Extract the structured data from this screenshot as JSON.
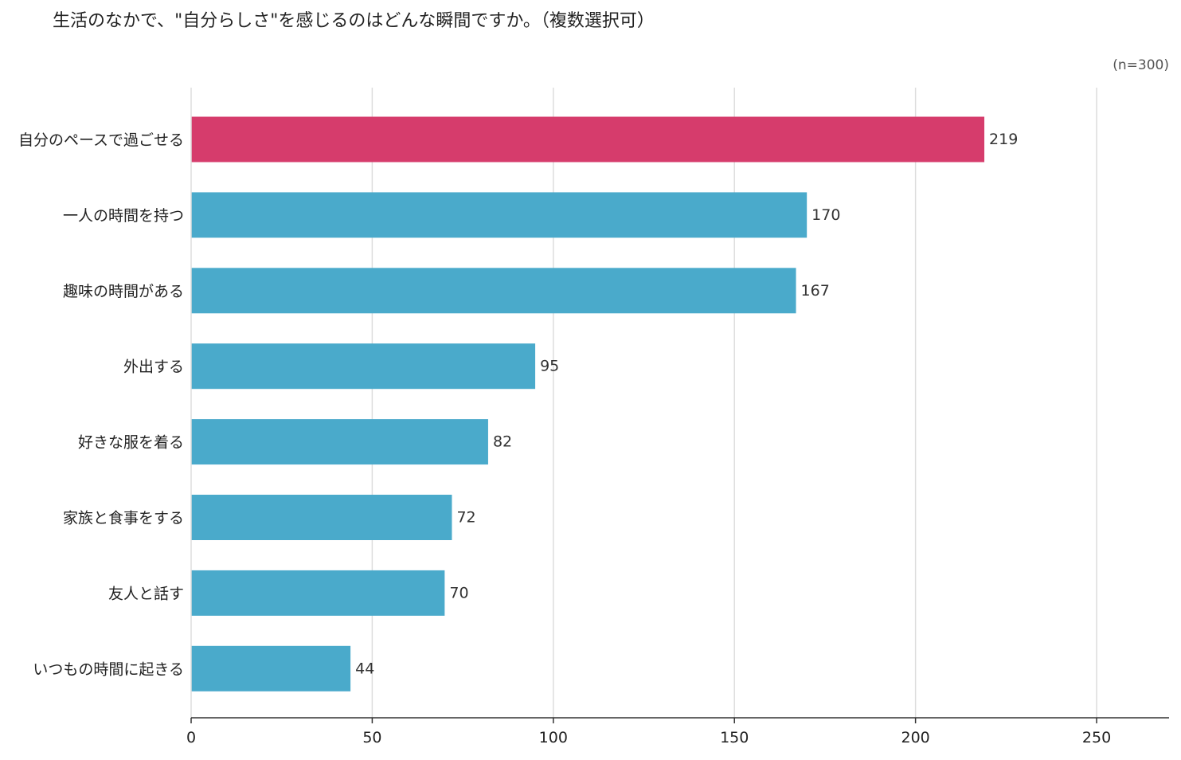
{
  "chart_data": {
    "type": "bar",
    "orientation": "horizontal",
    "title": "生活のなかで、\"自分らしさ\"を感じるのはどんな瞬間ですか。（複数選択可）",
    "note": "(n=300)",
    "categories": [
      "自分のペースで過ごせる",
      "一人の時間を持つ",
      "趣味の時間がある",
      "外出する",
      "好きな服を着る",
      "家族と食事をする",
      "友人と話す",
      "いつもの時間に起きる"
    ],
    "values": [
      219,
      170,
      167,
      95,
      82,
      72,
      70,
      44
    ],
    "highlight_index": 0,
    "xlim": [
      0,
      270
    ],
    "xticks": [
      0,
      50,
      100,
      150,
      200,
      250
    ],
    "grid": true,
    "colors": {
      "highlight": "#d63c6c",
      "bar": "#4aaacb",
      "grid": "#dddddd",
      "axis": "#333333"
    }
  }
}
